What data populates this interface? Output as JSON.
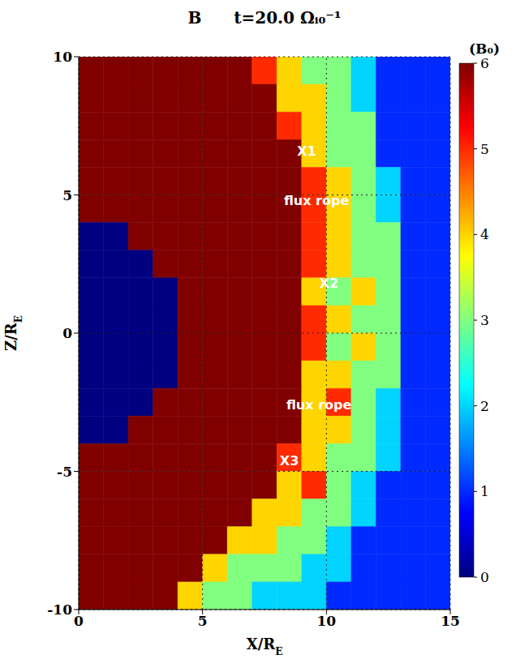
{
  "chart_data": {
    "type": "heatmap",
    "title": "B",
    "subtitle": "t=20.0 Ωᵢ₀⁻¹",
    "xlabel": {
      "text": "X/R",
      "subscript": "E"
    },
    "ylabel": {
      "text": "Z/R",
      "subscript": "E"
    },
    "xlim": [
      0,
      15
    ],
    "ylim": [
      -10,
      10
    ],
    "xticks": [
      0,
      5,
      10,
      15
    ],
    "yticks": [
      -10,
      -5,
      0,
      5,
      10
    ],
    "grid": true,
    "x_edges": [
      0,
      1,
      2,
      3,
      4,
      5,
      6,
      7,
      8,
      9,
      10,
      11,
      12,
      13,
      14,
      15
    ],
    "z_edges": [
      10,
      9,
      8,
      7,
      6,
      5,
      4,
      3,
      2,
      1,
      0,
      -1,
      -2,
      -3,
      -4,
      -5,
      -6,
      -7,
      -8,
      -9,
      -10
    ],
    "cells": [
      [
        6,
        6,
        6,
        6,
        6,
        6,
        6,
        5,
        4,
        3,
        3,
        2,
        1,
        1,
        1
      ],
      [
        6,
        6,
        6,
        6,
        6,
        6,
        6,
        6,
        4,
        4,
        3,
        2,
        1,
        1,
        1
      ],
      [
        6,
        6,
        6,
        6,
        6,
        6,
        6,
        6,
        5,
        4,
        3,
        3,
        1,
        1,
        1
      ],
      [
        6,
        6,
        6,
        6,
        6,
        6,
        6,
        6,
        6,
        4,
        3,
        3,
        1,
        1,
        1
      ],
      [
        6,
        6,
        6,
        6,
        6,
        6,
        6,
        6,
        6,
        5,
        4,
        3,
        2,
        1,
        1
      ],
      [
        6,
        6,
        6,
        6,
        6,
        6,
        6,
        6,
        6,
        5,
        4,
        3,
        2,
        1,
        1
      ],
      [
        0,
        0,
        6,
        6,
        6,
        6,
        6,
        6,
        6,
        5,
        4,
        3,
        3,
        1,
        1
      ],
      [
        0,
        0,
        0,
        6,
        6,
        6,
        6,
        6,
        6,
        5,
        4,
        3,
        3,
        1,
        1
      ],
      [
        0,
        0,
        0,
        0,
        6,
        6,
        6,
        6,
        6,
        4,
        3,
        4,
        3,
        1,
        1
      ],
      [
        0,
        0,
        0,
        0,
        6,
        6,
        6,
        6,
        6,
        5,
        4,
        3,
        3,
        1,
        1
      ],
      [
        0,
        0,
        0,
        0,
        6,
        6,
        6,
        6,
        6,
        5,
        3,
        4,
        3,
        1,
        1
      ],
      [
        0,
        0,
        0,
        0,
        6,
        6,
        6,
        6,
        6,
        4,
        4,
        3,
        3,
        1,
        1
      ],
      [
        0,
        0,
        0,
        6,
        6,
        6,
        6,
        6,
        6,
        4,
        5,
        3,
        2,
        1,
        1
      ],
      [
        0,
        0,
        6,
        6,
        6,
        6,
        6,
        6,
        6,
        4,
        4,
        3,
        2,
        1,
        1
      ],
      [
        6,
        6,
        6,
        6,
        6,
        6,
        6,
        6,
        5,
        4,
        3,
        3,
        2,
        1,
        1
      ],
      [
        6,
        6,
        6,
        6,
        6,
        6,
        6,
        6,
        4,
        5,
        3,
        2,
        1,
        1,
        1
      ],
      [
        6,
        6,
        6,
        6,
        6,
        6,
        6,
        4,
        4,
        3,
        3,
        2,
        1,
        1,
        1
      ],
      [
        6,
        6,
        6,
        6,
        6,
        6,
        4,
        4,
        3,
        3,
        2,
        1,
        1,
        1,
        1
      ],
      [
        6,
        6,
        6,
        6,
        6,
        4,
        3,
        3,
        3,
        2,
        2,
        1,
        1,
        1,
        1
      ],
      [
        6,
        6,
        6,
        6,
        4,
        3,
        3,
        2,
        2,
        2,
        1,
        1,
        1,
        1,
        1
      ]
    ],
    "colorbar": {
      "label": "(B₀)",
      "range": [
        0,
        6
      ],
      "ticks": [
        0,
        1,
        2,
        3,
        4,
        5,
        6
      ]
    },
    "annotations": [
      {
        "text": "X1",
        "x": 9.2,
        "z": 6.6
      },
      {
        "text": "flux rope",
        "x": 9.6,
        "z": 4.8
      },
      {
        "text": "X2",
        "x": 10.1,
        "z": 1.8
      },
      {
        "text": "flux rope",
        "x": 9.7,
        "z": -2.6
      },
      {
        "text": "X3",
        "x": 8.5,
        "z": -4.6
      }
    ]
  }
}
